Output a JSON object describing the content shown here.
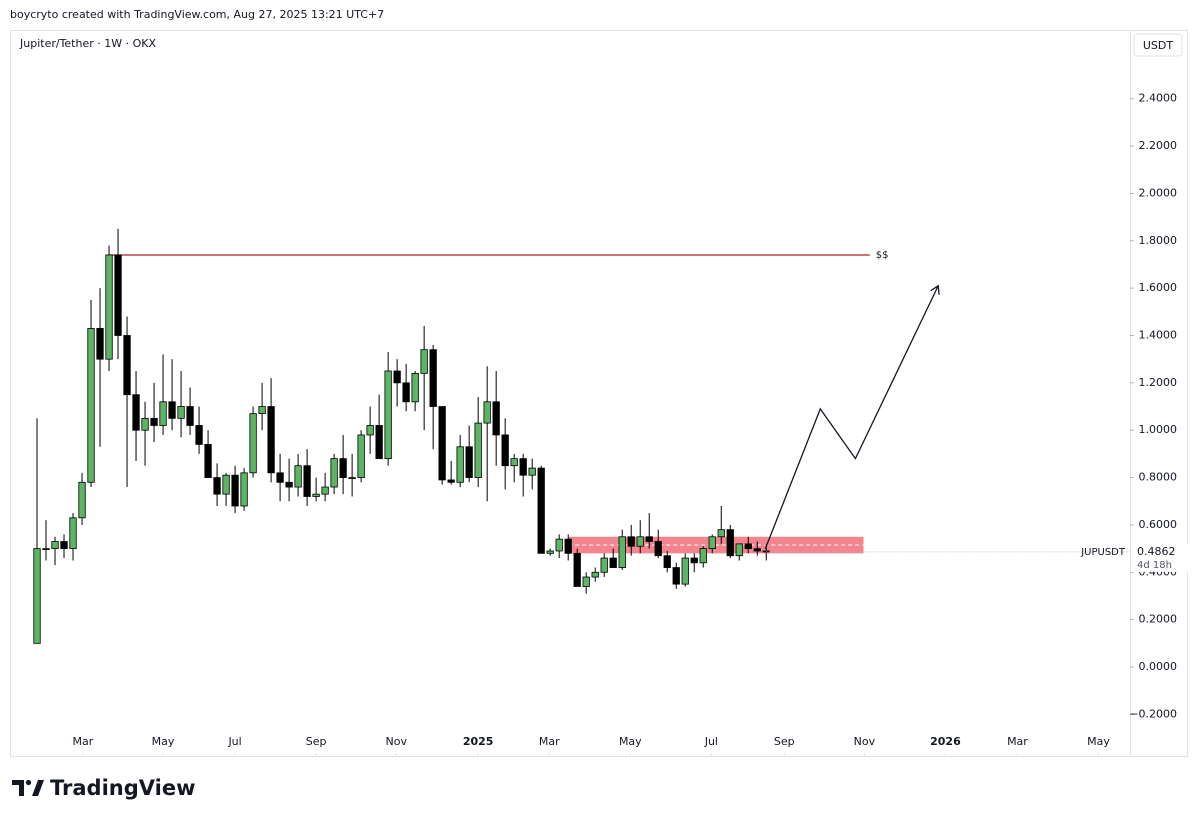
{
  "chart_data": {
    "type": "candlestick",
    "header": "boycryto created with TradingView.com, Aug 27, 2025 13:21 UTC+7",
    "title": "Jupiter/Tether · 1W · OKX",
    "currency": "USDT",
    "symbol": "JUPUSDT",
    "countdown": "4d 18h",
    "brand": "TradingView",
    "up_color": "#5cb563",
    "down_color": "#000000",
    "border_color": "#000000",
    "open": [
      0.1,
      0.5,
      0.5,
      0.53,
      0.5,
      0.63,
      0.78,
      1.43,
      1.3,
      1.74,
      1.4,
      1.15,
      1.0,
      1.05,
      1.02,
      1.12,
      1.05,
      1.1,
      1.02,
      0.94,
      0.8,
      0.73,
      0.81,
      0.68,
      0.82,
      1.07,
      1.1,
      0.82,
      0.78,
      0.76,
      0.85,
      0.72,
      0.73,
      0.76,
      0.88,
      0.8,
      0.8,
      0.98,
      1.02,
      0.88,
      1.25,
      1.2,
      1.12,
      1.24,
      1.34,
      1.1,
      0.79,
      0.78,
      0.93,
      0.8,
      1.03,
      1.12,
      0.98,
      0.85,
      0.88,
      0.81,
      0.84,
      0.48,
      0.49,
      0.54,
      0.48,
      0.34,
      0.38,
      0.4,
      0.46,
      0.42,
      0.55,
      0.51,
      0.55,
      0.53,
      0.47,
      0.42,
      0.35,
      0.46,
      0.44,
      0.5,
      0.55,
      0.58,
      0.47,
      0.52,
      0.5,
      0.49
    ],
    "high": [
      1.05,
      0.62,
      0.55,
      0.56,
      0.65,
      0.82,
      1.55,
      1.6,
      1.78,
      1.85,
      1.48,
      1.25,
      1.12,
      1.2,
      1.32,
      1.3,
      1.25,
      1.18,
      1.1,
      1.0,
      0.86,
      0.82,
      0.85,
      0.84,
      1.1,
      1.2,
      1.22,
      0.9,
      0.88,
      0.9,
      0.92,
      0.8,
      0.82,
      0.9,
      0.98,
      0.9,
      1.0,
      1.1,
      1.15,
      1.33,
      1.3,
      1.28,
      1.25,
      1.44,
      1.36,
      1.1,
      0.87,
      0.98,
      1.02,
      1.14,
      1.27,
      1.25,
      1.05,
      0.9,
      0.9,
      0.88,
      0.85,
      0.5,
      0.56,
      0.56,
      0.5,
      0.4,
      0.42,
      0.48,
      0.5,
      0.58,
      0.6,
      0.62,
      0.65,
      0.58,
      0.49,
      0.44,
      0.48,
      0.48,
      0.51,
      0.56,
      0.68,
      0.6,
      0.52,
      0.55,
      0.53,
      0.52
    ],
    "low": [
      0.1,
      0.45,
      0.43,
      0.46,
      0.45,
      0.6,
      0.76,
      0.93,
      1.25,
      1.3,
      0.76,
      0.87,
      0.85,
      0.95,
      0.98,
      1.0,
      0.97,
      0.98,
      0.9,
      0.8,
      0.68,
      0.68,
      0.65,
      0.66,
      0.8,
      1.0,
      0.78,
      0.7,
      0.7,
      0.72,
      0.68,
      0.7,
      0.7,
      0.73,
      0.73,
      0.72,
      0.78,
      0.9,
      0.88,
      0.85,
      1.1,
      1.08,
      1.08,
      1.0,
      0.92,
      0.77,
      0.77,
      0.76,
      0.78,
      0.76,
      0.7,
      0.85,
      0.75,
      0.78,
      0.72,
      0.75,
      0.48,
      0.47,
      0.46,
      0.45,
      0.34,
      0.31,
      0.36,
      0.38,
      0.42,
      0.41,
      0.47,
      0.48,
      0.5,
      0.46,
      0.4,
      0.33,
      0.34,
      0.4,
      0.42,
      0.48,
      0.52,
      0.46,
      0.45,
      0.48,
      0.47,
      0.45
    ],
    "close": [
      0.5,
      0.5,
      0.53,
      0.5,
      0.63,
      0.78,
      1.43,
      1.3,
      1.74,
      1.4,
      1.15,
      1.0,
      1.05,
      1.02,
      1.12,
      1.05,
      1.1,
      1.02,
      0.94,
      0.8,
      0.73,
      0.81,
      0.68,
      0.82,
      1.07,
      1.1,
      0.82,
      0.78,
      0.76,
      0.85,
      0.72,
      0.73,
      0.76,
      0.88,
      0.8,
      0.8,
      0.98,
      1.02,
      0.88,
      1.25,
      1.2,
      1.12,
      1.24,
      1.34,
      1.1,
      0.79,
      0.78,
      0.93,
      0.8,
      1.03,
      1.12,
      0.98,
      0.85,
      0.88,
      0.81,
      0.84,
      0.48,
      0.49,
      0.54,
      0.48,
      0.34,
      0.38,
      0.4,
      0.46,
      0.42,
      0.55,
      0.51,
      0.55,
      0.53,
      0.47,
      0.42,
      0.35,
      0.46,
      0.44,
      0.5,
      0.55,
      0.58,
      0.47,
      0.52,
      0.5,
      0.49,
      0.4862
    ],
    "xlim": [
      -3,
      121.4
    ],
    "xticks": [
      {
        "value": 5.1,
        "label": "Mar"
      },
      {
        "value": 14,
        "label": "May"
      },
      {
        "value": 22,
        "label": "Jul"
      },
      {
        "value": 31,
        "label": "Sep"
      },
      {
        "value": 39.9,
        "label": "Nov"
      },
      {
        "value": 49,
        "label": "2025"
      },
      {
        "value": 56.9,
        "label": "Mar"
      },
      {
        "value": 65.9,
        "label": "May"
      },
      {
        "value": 74.9,
        "label": "Jul"
      },
      {
        "value": 83,
        "label": "Sep"
      },
      {
        "value": 91.9,
        "label": "Nov"
      },
      {
        "value": 100.9,
        "label": "2026"
      },
      {
        "value": 108.9,
        "label": "Mar"
      },
      {
        "value": 117.9,
        "label": "May"
      }
    ],
    "ylim": [
      -0.38,
      2.69
    ],
    "yticks": [
      {
        "value": -0.2,
        "label": "−0.2000"
      },
      {
        "value": 0,
        "label": "0.0000"
      },
      {
        "value": 0.2,
        "label": "0.2000"
      },
      {
        "value": 0.4,
        "label": "0.4000"
      },
      {
        "value": 0.6,
        "label": "0.6000"
      },
      {
        "value": 0.8,
        "label": "0.8000"
      },
      {
        "value": 1,
        "label": "1.0000"
      },
      {
        "value": 1.2,
        "label": "1.2000"
      },
      {
        "value": 1.4,
        "label": "1.4000"
      },
      {
        "value": 1.6,
        "label": "1.6000"
      },
      {
        "value": 1.8,
        "label": "1.8000"
      },
      {
        "value": 2,
        "label": "2.0000"
      },
      {
        "value": 2.2,
        "label": "2.2000"
      },
      {
        "value": 2.4,
        "label": "2.4000"
      }
    ],
    "resistance": {
      "value": 1.74,
      "x": [
        8,
        92.5
      ],
      "label": "$$",
      "color": "#b22222"
    },
    "zone": {
      "x": [
        59,
        91.8
      ],
      "y": [
        0.48,
        0.55
      ],
      "color": "#f0707c"
    },
    "projection": {
      "x": [
        80.9,
        87,
        90.9,
        100.1
      ],
      "y": [
        0.5,
        1.09,
        0.88,
        1.61
      ]
    }
  }
}
